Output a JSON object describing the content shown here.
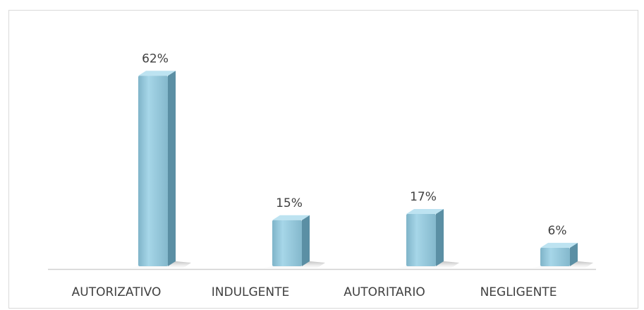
{
  "chart_data": {
    "type": "bar3d",
    "categories": [
      "AUTORIZATIVO",
      "INDULGENTE",
      "AUTORITARIO",
      "NEGLIGENTE"
    ],
    "values": [
      62,
      15,
      17,
      6
    ],
    "value_labels": [
      "62%",
      "15%",
      "17%",
      "6%"
    ],
    "color": "#8fc4d9"
  }
}
